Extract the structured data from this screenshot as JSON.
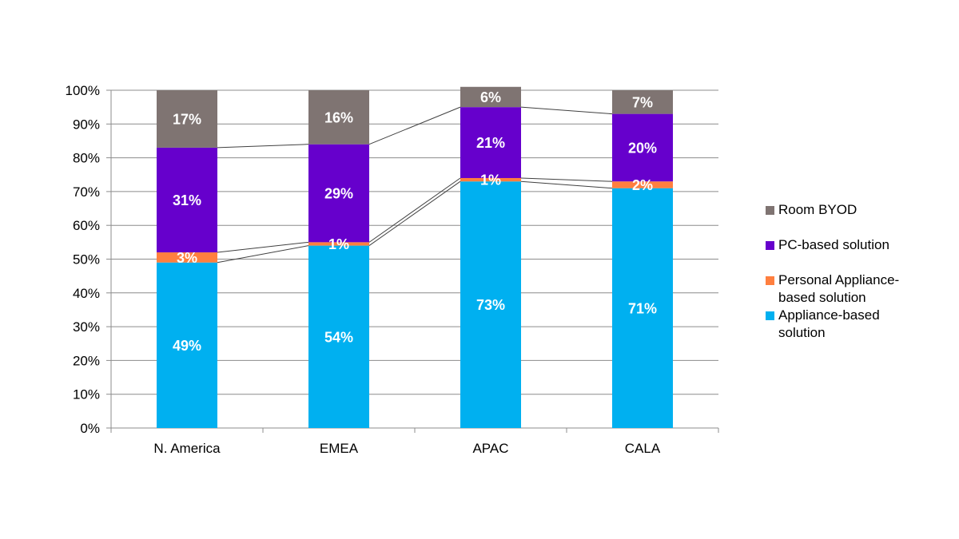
{
  "chart_data": {
    "type": "bar",
    "stacked": true,
    "categories": [
      "N. America",
      "EMEA",
      "APAC",
      "CALA"
    ],
    "series": [
      {
        "name": "Appliance-based solution",
        "values": [
          49,
          54,
          73,
          71
        ],
        "labels": [
          "49%",
          "54%",
          "73%",
          "71%"
        ],
        "color": "#00b0f0"
      },
      {
        "name": "Personal Appliance-based solution",
        "values": [
          3,
          1,
          1,
          2
        ],
        "labels": [
          "3%",
          "1%",
          "1%",
          "2%"
        ],
        "color": "#ff7f3f"
      },
      {
        "name": "PC-based solution",
        "values": [
          31,
          29,
          21,
          20
        ],
        "labels": [
          "31%",
          "29%",
          "21%",
          "20%"
        ],
        "color": "#6600cc"
      },
      {
        "name": "Room BYOD",
        "values": [
          17,
          16,
          6,
          7
        ],
        "labels": [
          "17%",
          "16%",
          "6%",
          "7%"
        ],
        "color": "#7f7472"
      }
    ],
    "ylim": [
      0,
      100
    ],
    "y_ticks": [
      "0%",
      "10%",
      "20%",
      "30%",
      "40%",
      "50%",
      "60%",
      "70%",
      "80%",
      "90%",
      "100%"
    ],
    "grid": true,
    "series_lines": true,
    "legend_position": "right",
    "legend_order": [
      "Room BYOD",
      "PC-based solution",
      "Personal Appliance-based solution",
      "Appliance-based solution"
    ],
    "legend_lines": {
      "Room BYOD": [
        "Room BYOD"
      ],
      "PC-based solution": [
        "PC-based solution"
      ],
      "Personal Appliance-based solution": [
        "Personal Appliance-",
        "based solution"
      ],
      "Appliance-based solution": [
        "Appliance-based",
        "solution"
      ]
    }
  }
}
